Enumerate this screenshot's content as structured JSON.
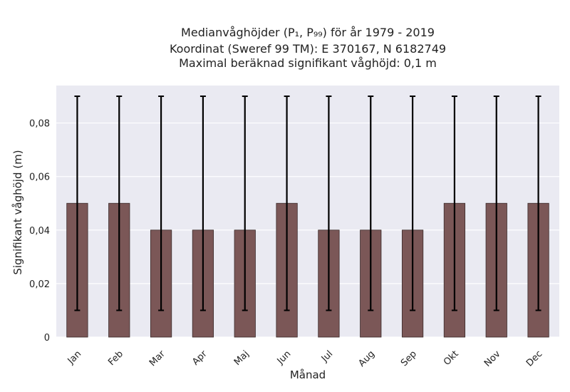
{
  "chart_data": {
    "type": "bar",
    "title_lines": [
      "Medianvåghöjder (P₁, P₉₉) för år 1979 - 2019",
      "Koordinat (Sweref 99 TM): E 370167, N 6182749",
      "Maximal beräknad signifikant våghöjd: 0,1 m"
    ],
    "xlabel": "Månad",
    "ylabel": "Signifikant våghöjd (m)",
    "categories": [
      "Jan",
      "Feb",
      "Mar",
      "Apr",
      "Maj",
      "Jun",
      "Jul",
      "Aug",
      "Sep",
      "Okt",
      "Nov",
      "Dec"
    ],
    "values": [
      0.05,
      0.05,
      0.04,
      0.04,
      0.04,
      0.05,
      0.04,
      0.04,
      0.04,
      0.05,
      0.05,
      0.05
    ],
    "error_low": [
      0.01,
      0.01,
      0.01,
      0.01,
      0.01,
      0.01,
      0.01,
      0.01,
      0.01,
      0.01,
      0.01,
      0.01
    ],
    "error_high": [
      0.09,
      0.09,
      0.09,
      0.09,
      0.09,
      0.09,
      0.09,
      0.09,
      0.09,
      0.09,
      0.09,
      0.09
    ],
    "ylim": [
      0,
      0.094
    ],
    "yticks": [
      0,
      0.02,
      0.04,
      0.06,
      0.08
    ],
    "ytick_labels": [
      "0",
      "0,02",
      "0,04",
      "0,06",
      "0,08"
    ],
    "grid": true,
    "colors": {
      "bar": "#7b5757",
      "bar_edge": "#3a2a2a",
      "error_bar": "#000000",
      "plot_background": "#eaeaf2",
      "grid": "#ffffff"
    }
  }
}
